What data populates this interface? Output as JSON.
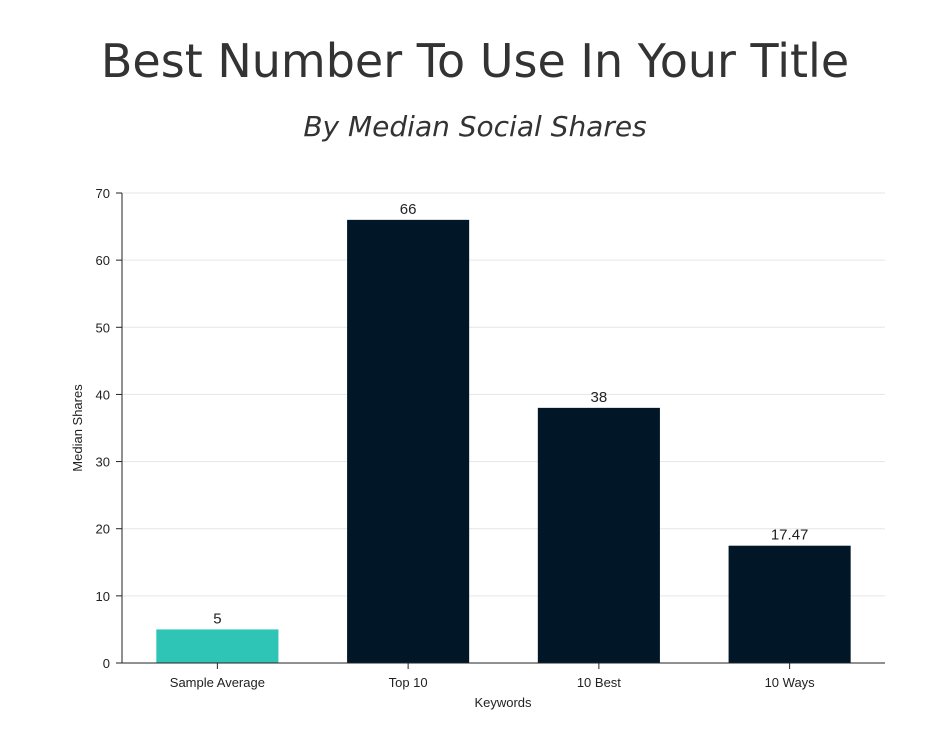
{
  "chart_data": {
    "type": "bar",
    "title": "Best Number To Use In Your Title",
    "subtitle": "By Median Social Shares",
    "xlabel": "Keywords",
    "ylabel": "Median Shares",
    "categories": [
      "Sample Average",
      "Top 10",
      "10 Best",
      "10 Ways"
    ],
    "values": [
      5,
      66,
      38,
      17.47
    ],
    "value_labels": [
      "5",
      "66",
      "38",
      "17.47"
    ],
    "ylim": [
      0,
      70
    ],
    "yticks": [
      0,
      10,
      20,
      30,
      40,
      50,
      60,
      70
    ],
    "grid": true,
    "legend": "none",
    "colors": [
      "#2ec4b6",
      "#011627",
      "#011627",
      "#011627"
    ]
  }
}
